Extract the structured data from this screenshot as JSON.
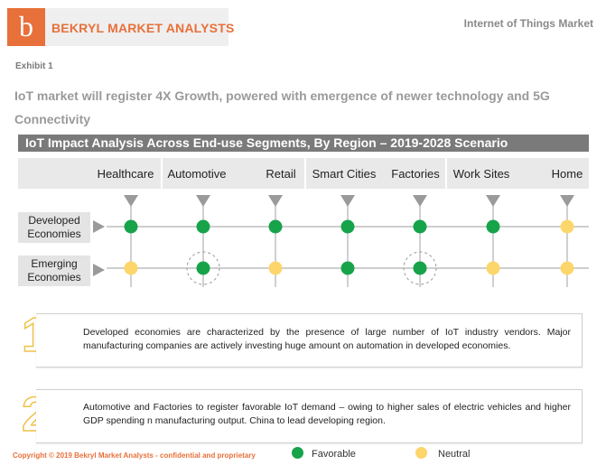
{
  "header": {
    "logo_letter": "b",
    "brand": "BEKRYL MARKET ANALYSTS",
    "report": "Internet of Things Market",
    "exhibit": "Exhibit 1",
    "headline": "IoT market will register 4X Growth, powered with emergence of newer technology and 5G Connectivity"
  },
  "colors": {
    "favorable": "#16a34a",
    "neutral": "#fcd66b",
    "accent": "#e8703a"
  },
  "chart_data": {
    "type": "table",
    "title": "IoT Impact Analysis Across End-use Segments, By Region – 2019-2028 Scenario",
    "categories": [
      "Healthcare",
      "Automotive",
      "Retail",
      "Smart Cities",
      "Factories",
      "Work Sites",
      "Home"
    ],
    "series": [
      {
        "name": "Developed Economies",
        "values": [
          "Favorable",
          "Favorable",
          "Favorable",
          "Favorable",
          "Favorable",
          "Favorable",
          "Neutral"
        ]
      },
      {
        "name": "Emerging Economies",
        "values": [
          "Neutral",
          "Favorable",
          "Neutral",
          "Favorable",
          "Favorable",
          "Neutral",
          "Neutral"
        ]
      }
    ],
    "highlighted": [
      {
        "series": "Emerging Economies",
        "category": "Automotive"
      },
      {
        "series": "Emerging Economies",
        "category": "Factories"
      }
    ],
    "legend": [
      {
        "label": "Favorable",
        "color": "#16a34a"
      },
      {
        "label": "Neutral",
        "color": "#fcd66b"
      }
    ]
  },
  "notes": [
    {
      "number": "1",
      "text": "Developed economies are characterized by the presence of large number of IoT industry vendors. Major manufacturing companies are actively investing huge amount on automation in developed economies."
    },
    {
      "number": "2",
      "text": "Automotive and Factories to register favorable IoT demand – owing to higher sales of electric vehicles and higher GDP spending n manufacturing output. China to lead developing region."
    }
  ],
  "footer": {
    "copyright": "Copyright © 2019  Bekryl Market Analysts - confidential and proprietary",
    "legend_favorable": "Favorable",
    "legend_neutral": "Neutral"
  }
}
